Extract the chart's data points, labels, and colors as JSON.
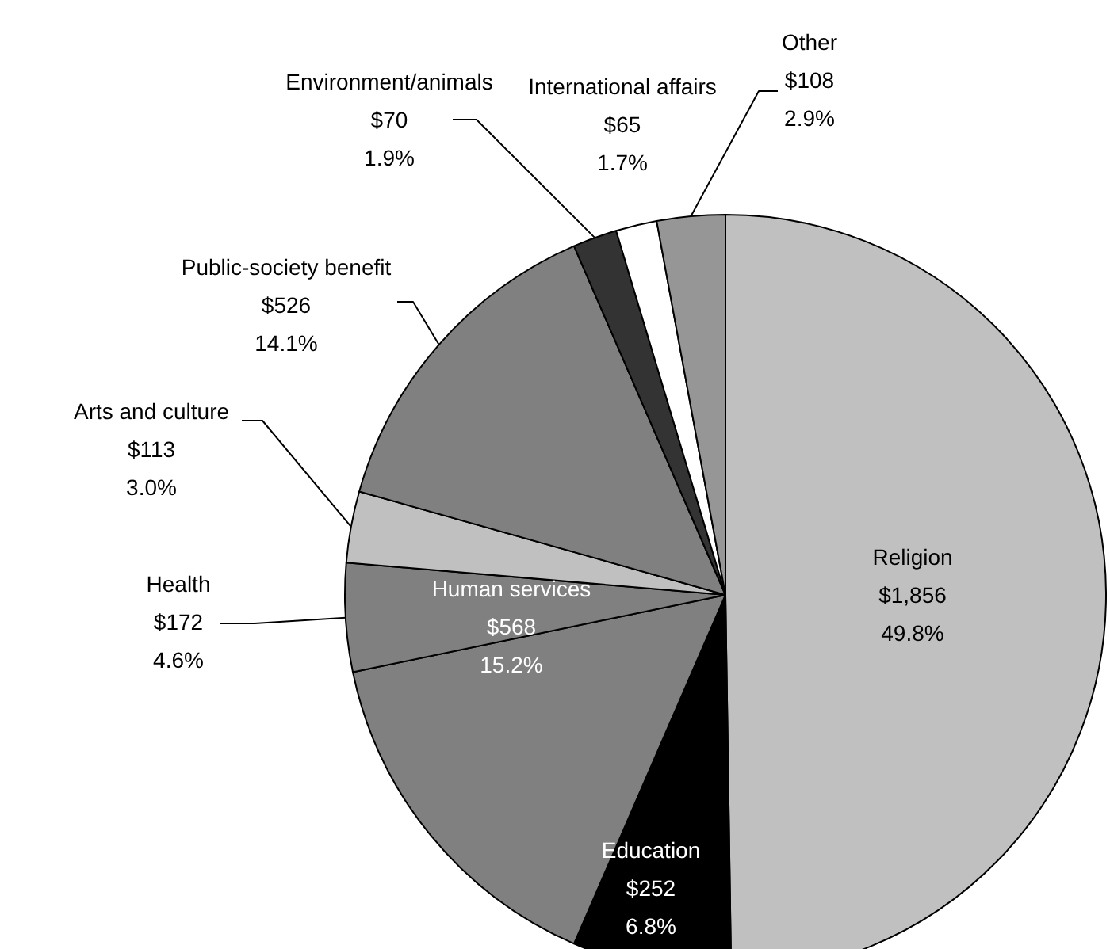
{
  "chart_data": {
    "type": "pie",
    "categories": [
      "Religion",
      "Education",
      "Human services",
      "Health",
      "Arts and culture",
      "Public-society benefit",
      "Environment/animals",
      "International affairs",
      "Other"
    ],
    "values": [
      1856,
      252,
      568,
      172,
      113,
      526,
      70,
      65,
      108
    ],
    "colors": [
      "#c0c0c0",
      "#000000",
      "#808080",
      "#808080",
      "#c0c0c0",
      "#808080",
      "#333333",
      "#ffffff",
      "#969696"
    ],
    "value_labels": [
      "$1,856\n49.8%",
      "$252\n6.8%",
      "$568\n15.2%",
      "$172\n4.6%",
      "$113\n3.0%",
      "$526\n14.1%",
      "$70\n1.9%",
      "$65\n1.7%",
      "$108\n2.9%"
    ]
  }
}
